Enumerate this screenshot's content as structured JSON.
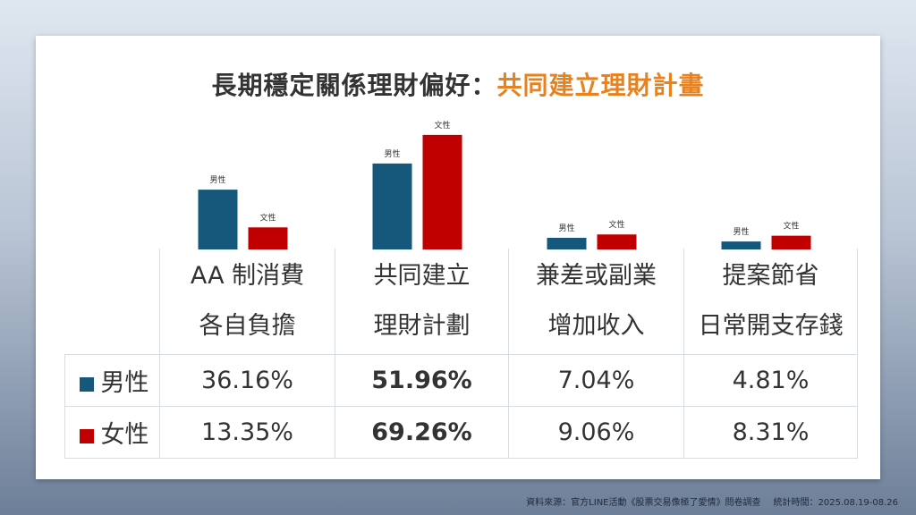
{
  "title": {
    "main": "長期穩定關係理財偏好：",
    "highlight": "共同建立理財計畫"
  },
  "colors": {
    "male": "#16587c",
    "female": "#c00000",
    "highlight": "#e8821f"
  },
  "table": {
    "columns": [
      [
        "AA 制消費",
        "各自負擔"
      ],
      [
        "共同建立",
        "理財計劃"
      ],
      [
        "兼差或副業",
        "增加收入"
      ],
      [
        "提案節省",
        "日常開支存錢"
      ]
    ],
    "rows": [
      {
        "label": "男性",
        "cells": [
          "36.16%",
          "51.96%",
          "7.04%",
          "4.81%"
        ]
      },
      {
        "label": "女性",
        "cells": [
          "13.35%",
          "69.26%",
          "9.06%",
          "8.31%"
        ]
      }
    ]
  },
  "chart_data": {
    "type": "bar",
    "categories": [
      "AA 制消費各自負擔",
      "共同建立理財計劃",
      "兼差或副業增加收入",
      "提案節省日常開支存錢"
    ],
    "series": [
      {
        "name": "男性",
        "values": [
          36.16,
          51.96,
          7.04,
          4.81
        ]
      },
      {
        "name": "女性",
        "values": [
          13.35,
          69.26,
          9.06,
          8.31
        ]
      }
    ],
    "bar_labels": [
      "男性",
      "文性"
    ],
    "grid": false
  },
  "source": {
    "left": "資料來源：官方LINE活動《股票交易像極了愛情》問卷調查",
    "right": "統計時間：2025.08.19-08.26"
  }
}
